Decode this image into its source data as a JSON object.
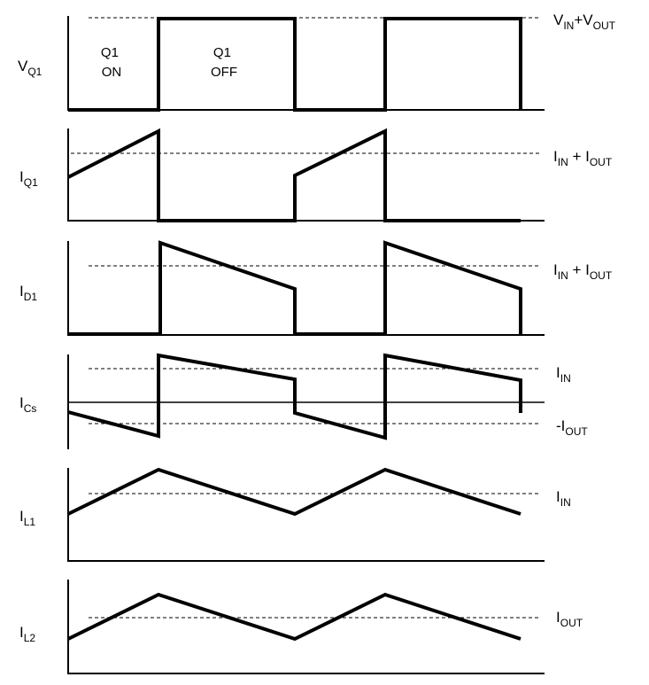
{
  "panels": [
    {
      "id": "vq1",
      "label": {
        "main": "V",
        "sub": "Q1"
      },
      "refs": [
        {
          "parts": [
            {
              "t": "V"
            },
            {
              "t": "IN",
              "sub": true
            },
            {
              "t": "+V"
            },
            {
              "t": "OUT",
              "sub": true
            }
          ]
        }
      ],
      "annotations": [
        {
          "lines": [
            "Q1",
            "ON"
          ]
        },
        {
          "lines": [
            "Q1",
            "OFF"
          ]
        }
      ],
      "waveform_type": "square",
      "description_values": {
        "high": "V_IN+V_OUT",
        "low": 0
      }
    },
    {
      "id": "iq1",
      "label": {
        "main": "I",
        "sub": "Q1"
      },
      "refs": [
        {
          "parts": [
            {
              "t": "I"
            },
            {
              "t": "IN",
              "sub": true
            },
            {
              "t": " + I"
            },
            {
              "t": "OUT",
              "sub": true
            }
          ]
        }
      ],
      "waveform_type": "switch-current"
    },
    {
      "id": "id1",
      "label": {
        "main": "I",
        "sub": "D1"
      },
      "refs": [
        {
          "parts": [
            {
              "t": "I"
            },
            {
              "t": "IN",
              "sub": true
            },
            {
              "t": " + I"
            },
            {
              "t": "OUT",
              "sub": true
            }
          ]
        }
      ],
      "waveform_type": "diode-current"
    },
    {
      "id": "ics",
      "label": {
        "main": "I",
        "sub": "Cs"
      },
      "refs": [
        {
          "parts": [
            {
              "t": "I"
            },
            {
              "t": "IN",
              "sub": true
            }
          ]
        },
        {
          "parts": [
            {
              "t": "-I"
            },
            {
              "t": "OUT",
              "sub": true
            }
          ]
        }
      ],
      "waveform_type": "capacitor-current"
    },
    {
      "id": "il1",
      "label": {
        "main": "I",
        "sub": "L1"
      },
      "refs": [
        {
          "parts": [
            {
              "t": "I"
            },
            {
              "t": "IN",
              "sub": true
            }
          ]
        }
      ],
      "waveform_type": "triangle"
    },
    {
      "id": "il2",
      "label": {
        "main": "I",
        "sub": "L2"
      },
      "refs": [
        {
          "parts": [
            {
              "t": "I"
            },
            {
              "t": "OUT",
              "sub": true
            }
          ]
        }
      ],
      "waveform_type": "triangle"
    }
  ]
}
